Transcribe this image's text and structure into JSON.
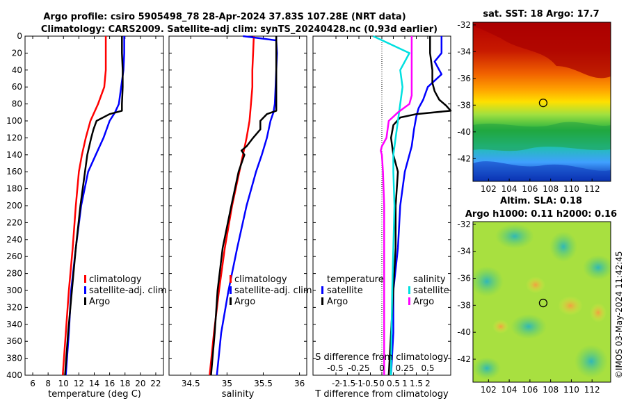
{
  "title": {
    "line1": "Argo profile: csiro 5905498_78 28-Apr-2024 37.83S 107.28E (NRT data)",
    "line2": "Climatology: CARS2009. Satellite-adj clim: synTS_20240428.nc (0.93d earlier)"
  },
  "colors": {
    "climatology": "#ff0000",
    "satellite": "#0000ff",
    "argo": "#000000",
    "cyan": "#00e0e0",
    "magenta": "#ff00ff"
  },
  "credit": "©IMOS 03-May-2024 11:42:45",
  "chart_data": [
    {
      "id": "temperature",
      "type": "line",
      "xlabel": "temperature (deg C)",
      "ylabel": "",
      "xlim": [
        5,
        23
      ],
      "ylim": [
        400,
        0
      ],
      "xticks": [
        6,
        8,
        10,
        12,
        14,
        16,
        18,
        20,
        22
      ],
      "yticks": [
        0,
        20,
        40,
        60,
        80,
        100,
        120,
        140,
        160,
        180,
        200,
        220,
        240,
        260,
        280,
        300,
        320,
        340,
        360,
        380,
        400
      ],
      "legend": [
        "climatology",
        "satellite-adj. clim",
        "Argo"
      ],
      "series": [
        {
          "name": "climatology",
          "color": "#ff0000",
          "depth": [
            0,
            20,
            40,
            60,
            80,
            100,
            120,
            140,
            160,
            200,
            250,
            300,
            350,
            400
          ],
          "values": [
            15.5,
            15.5,
            15.5,
            15.3,
            14.5,
            13.5,
            12.9,
            12.4,
            12.0,
            11.6,
            11.2,
            10.7,
            10.3,
            9.9
          ]
        },
        {
          "name": "satellite-adj. clim",
          "color": "#0000ff",
          "depth": [
            0,
            20,
            40,
            60,
            80,
            90,
            100,
            120,
            140,
            160,
            200,
            250,
            300,
            350,
            400
          ],
          "values": [
            17.9,
            17.9,
            17.8,
            17.5,
            17.2,
            16.7,
            16.0,
            15.2,
            14.2,
            13.2,
            12.3,
            11.6,
            11.0,
            10.7,
            10.3
          ]
        },
        {
          "name": "Argo",
          "color": "#000000",
          "depth": [
            0,
            20,
            40,
            60,
            80,
            88,
            92,
            100,
            110,
            120,
            140,
            160,
            200,
            250,
            300,
            350,
            400
          ],
          "values": [
            17.6,
            17.6,
            17.7,
            17.7,
            17.6,
            17.6,
            16.0,
            14.3,
            13.9,
            13.6,
            13.1,
            12.8,
            12.2,
            11.6,
            11.1,
            10.6,
            10.2
          ]
        }
      ]
    },
    {
      "id": "salinity",
      "type": "line",
      "xlabel": "salinity",
      "ylabel": "",
      "xlim": [
        34.2,
        36.1
      ],
      "ylim": [
        400,
        0
      ],
      "xticks": [
        34.5,
        35,
        35.5,
        36
      ],
      "legend": [
        "climatology",
        "satellite-adj. clim",
        "Argo"
      ],
      "series": [
        {
          "name": "climatology",
          "color": "#ff0000",
          "depth": [
            0,
            20,
            40,
            60,
            80,
            100,
            120,
            140,
            160,
            200,
            250,
            300,
            350,
            400
          ],
          "values": [
            35.37,
            35.36,
            35.35,
            35.35,
            35.33,
            35.31,
            35.27,
            35.22,
            35.17,
            35.07,
            34.97,
            34.89,
            34.82,
            34.76
          ]
        },
        {
          "name": "satellite-adj. clim",
          "color": "#0000ff",
          "depth": [
            0,
            5,
            20,
            40,
            60,
            80,
            90,
            100,
            120,
            140,
            160,
            200,
            250,
            300,
            350,
            400
          ],
          "values": [
            35.22,
            35.68,
            35.69,
            35.68,
            35.67,
            35.66,
            35.64,
            35.6,
            35.55,
            35.48,
            35.4,
            35.27,
            35.14,
            35.02,
            34.92,
            34.86
          ]
        },
        {
          "name": "Argo",
          "color": "#000000",
          "depth": [
            0,
            20,
            40,
            60,
            80,
            88,
            92,
            100,
            110,
            120,
            130,
            135,
            140,
            160,
            200,
            250,
            300,
            350,
            400
          ],
          "values": [
            35.68,
            35.68,
            35.68,
            35.68,
            35.68,
            35.68,
            35.55,
            35.46,
            35.46,
            35.36,
            35.27,
            35.2,
            35.24,
            35.16,
            35.06,
            34.94,
            34.87,
            34.83,
            34.78
          ]
        }
      ]
    },
    {
      "id": "difference",
      "type": "line",
      "xlabel": "T difference from climatology",
      "ylabel": "",
      "xlim": [
        -3,
        3
      ],
      "ylim": [
        400,
        0
      ],
      "xticks": [
        -2,
        -1.5,
        -1,
        -0.5,
        0,
        0.5,
        1,
        1.5,
        2
      ],
      "s_axis": {
        "label": "S difference from climatology",
        "ticks": [
          "-0.5",
          "-0.25",
          "0",
          "0.25",
          "0.5"
        ]
      },
      "legend": {
        "temperature": "temperature",
        "salinity": "salinity",
        "satellite": "satellite",
        "argo": "Argo"
      },
      "series": [
        {
          "name": "temperature satellite",
          "color": "#0000ff",
          "depth": [
            0,
            20,
            30,
            45,
            60,
            75,
            85,
            95,
            110,
            130,
            160,
            200,
            250,
            300,
            350,
            400
          ],
          "values": [
            2.6,
            2.6,
            2.3,
            2.6,
            2.0,
            1.8,
            1.6,
            1.5,
            1.4,
            1.3,
            1.0,
            0.8,
            0.7,
            0.5,
            0.5,
            0.4
          ]
        },
        {
          "name": "temperature Argo",
          "color": "#000000",
          "depth": [
            0,
            20,
            40,
            55,
            65,
            75,
            82,
            88,
            92,
            96,
            105,
            120,
            140,
            160,
            200,
            250,
            300,
            350,
            400
          ],
          "values": [
            2.1,
            2.1,
            2.2,
            2.2,
            2.3,
            2.5,
            2.8,
            3.0,
            1.5,
            0.8,
            0.5,
            0.4,
            0.5,
            0.7,
            0.6,
            0.6,
            0.5,
            0.4,
            0.3
          ]
        },
        {
          "name": "salinity satellite",
          "color": "#00e0e0",
          "depth": [
            0,
            20,
            40,
            60,
            80,
            100,
            120,
            140,
            160,
            200,
            250,
            300,
            350,
            400
          ],
          "values": [
            -0.38,
            1.2,
            0.8,
            0.9,
            0.8,
            0.7,
            0.6,
            0.5,
            0.5,
            0.55,
            0.5,
            0.45,
            0.42,
            0.4
          ]
        },
        {
          "name": "salinity Argo",
          "color": "#ff00ff",
          "depth": [
            0,
            20,
            40,
            60,
            70,
            80,
            90,
            95,
            100,
            120,
            130,
            135,
            140,
            160,
            200,
            250,
            300,
            350,
            400
          ],
          "values": [
            1.3,
            1.3,
            1.3,
            1.3,
            1.3,
            1.2,
            0.7,
            0.5,
            0.3,
            0.2,
            0.0,
            -0.05,
            0.0,
            0.05,
            0.1,
            0.1,
            0.1,
            0.1,
            0.1
          ]
        }
      ]
    },
    {
      "id": "sst_map",
      "type": "heatmap",
      "title": "sat. SST: 18 Argo: 17.7",
      "xlim": [
        100.5,
        113.8
      ],
      "ylim": [
        -43.7,
        -31.8
      ],
      "xticks": [
        102,
        104,
        106,
        108,
        110,
        112
      ],
      "yticks": [
        -32,
        -34,
        -36,
        -38,
        -40,
        -42
      ],
      "argo_position": {
        "lon": 107.28,
        "lat": -37.83
      }
    },
    {
      "id": "sla_map",
      "type": "heatmap",
      "title_line1": "Altim. SLA: 0.18",
      "title_line2": "Argo h1000: 0.11 h2000: 0.16",
      "xlim": [
        100.5,
        113.8
      ],
      "ylim": [
        -43.7,
        -31.8
      ],
      "xticks": [
        102,
        104,
        106,
        108,
        110,
        112
      ],
      "yticks": [
        -32,
        -34,
        -36,
        -38,
        -40,
        -42
      ],
      "argo_position": {
        "lon": 107.28,
        "lat": -37.83
      }
    }
  ]
}
